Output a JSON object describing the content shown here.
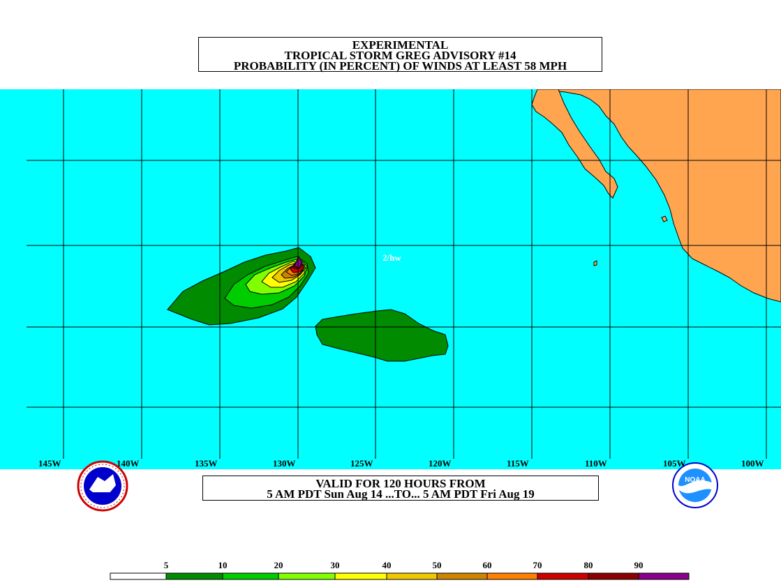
{
  "title": {
    "line1": "EXPERIMENTAL",
    "line2": "TROPICAL STORM GREG ADVISORY #14",
    "line3": "PROBABILITY (IN PERCENT) OF WINDS AT LEAST 58 MPH"
  },
  "valid": {
    "line1": "VALID FOR 120 HOURS FROM",
    "line2": "5 AM PDT Sun Aug 14 ...TO... 5 AM PDT Fri Aug 19"
  },
  "map": {
    "ocean_color": "#00ffff",
    "land_color": "#ffa54f",
    "signature": "2/hw",
    "longitude_labels": [
      "145W",
      "140W",
      "135W",
      "130W",
      "125W",
      "120W",
      "115W",
      "110W",
      "105W",
      "100W"
    ]
  },
  "legend": {
    "labels": [
      "5",
      "10",
      "20",
      "30",
      "40",
      "50",
      "60",
      "70",
      "80",
      "90"
    ],
    "colors": [
      "#ffffff",
      "#008b00",
      "#00cd00",
      "#7fff00",
      "#ffff00",
      "#eec900",
      "#cd8500",
      "#ff7f00",
      "#cd0000",
      "#8b0000",
      "#8b008b"
    ]
  },
  "logos": {
    "left": "nws-logo",
    "right": "noaa-logo",
    "noaa_text": "NOAA"
  }
}
